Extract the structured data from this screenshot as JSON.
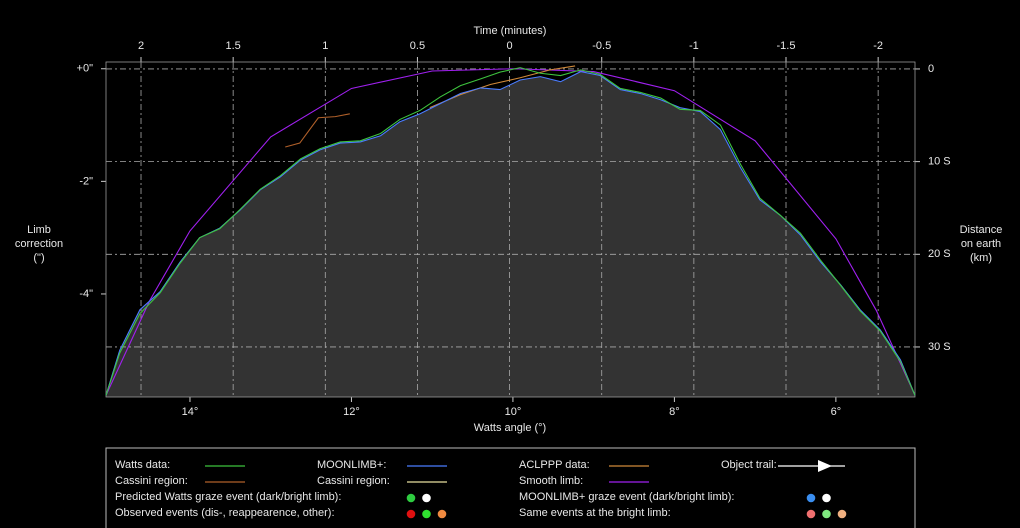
{
  "chart_data": {
    "type": "line",
    "x_label": "Watts angle (°)",
    "x2_label": "Time (minutes)",
    "y_label": [
      "Limb",
      "correction",
      "(\")"
    ],
    "y2_label": [
      "Distance",
      "on earth",
      "(km)"
    ],
    "xlim": [
      15.04,
      5.02
    ],
    "xticks": [
      {
        "value": 14,
        "label": "14°"
      },
      {
        "value": 12,
        "label": "12°"
      },
      {
        "value": 10,
        "label": "10°"
      },
      {
        "value": 8,
        "label": "8°"
      },
      {
        "value": 6,
        "label": "6°"
      }
    ],
    "x2lim": [
      2.19,
      -2.2
    ],
    "x2ticks": [
      2,
      1.5,
      1,
      0.5,
      0,
      -0.5,
      -1,
      -1.5,
      -2
    ],
    "ylim": [
      -5.83,
      0.12
    ],
    "yticks": [
      {
        "value": 0,
        "label": "+0\""
      },
      {
        "value": -2,
        "label": "-2\""
      },
      {
        "value": -4,
        "label": "-4\""
      }
    ],
    "y2lim": [
      35.4,
      -0.75
    ],
    "y2ticks": [
      0,
      {
        "value": 10,
        "label": "10 S"
      },
      {
        "value": 20,
        "label": "20 S"
      },
      {
        "value": 30,
        "label": "30 S"
      }
    ],
    "grid": true,
    "fill": "#333333",
    "series": [
      {
        "name": "Watts data:",
        "color": "#3ec43e",
        "x": [
          15.04,
          14.87,
          14.62,
          14.37,
          14.12,
          13.88,
          13.63,
          13.38,
          13.13,
          12.88,
          12.63,
          12.39,
          12.14,
          11.89,
          11.64,
          11.4,
          11.15,
          10.9,
          10.65,
          10.4,
          10.16,
          9.91,
          9.66,
          9.41,
          9.16,
          8.92,
          8.67,
          8.42,
          8.17,
          7.93,
          7.68,
          7.43,
          7.18,
          6.94,
          6.69,
          6.44,
          6.19,
          5.94,
          5.7,
          5.45,
          5.2,
          5.02
        ],
        "values": [
          -5.8,
          -5.05,
          -4.35,
          -3.98,
          -3.45,
          -3.0,
          -2.84,
          -2.5,
          -2.14,
          -1.9,
          -1.6,
          -1.42,
          -1.3,
          -1.28,
          -1.15,
          -0.9,
          -0.74,
          -0.5,
          -0.3,
          -0.18,
          -0.06,
          0.02,
          -0.08,
          -0.12,
          -0.02,
          -0.1,
          -0.35,
          -0.42,
          -0.52,
          -0.72,
          -0.74,
          -1.0,
          -1.7,
          -2.3,
          -2.6,
          -2.92,
          -3.4,
          -3.85,
          -4.3,
          -4.66,
          -5.2,
          -5.8
        ]
      },
      {
        "name": "MOONLIMB+:",
        "color": "#4a7cff",
        "x": [
          15.04,
          14.87,
          14.62,
          14.37,
          14.12,
          13.88,
          13.63,
          13.38,
          13.13,
          12.88,
          12.63,
          12.39,
          12.14,
          11.89,
          11.64,
          11.4,
          11.15,
          10.9,
          10.65,
          10.4,
          10.16,
          9.91,
          9.66,
          9.41,
          9.16,
          8.92,
          8.67,
          8.42,
          8.17,
          7.93,
          7.68,
          7.43,
          7.18,
          6.94,
          6.69,
          6.44,
          6.19,
          5.94,
          5.7,
          5.45,
          5.2,
          5.02
        ],
        "values": [
          -5.8,
          -5.0,
          -4.28,
          -3.96,
          -3.43,
          -3.0,
          -2.83,
          -2.51,
          -2.15,
          -1.92,
          -1.62,
          -1.44,
          -1.32,
          -1.3,
          -1.19,
          -0.94,
          -0.8,
          -0.62,
          -0.44,
          -0.34,
          -0.37,
          -0.2,
          -0.14,
          -0.23,
          -0.05,
          -0.12,
          -0.37,
          -0.44,
          -0.55,
          -0.69,
          -0.76,
          -1.08,
          -1.76,
          -2.33,
          -2.6,
          -2.95,
          -3.43,
          -3.84,
          -4.28,
          -4.64,
          -5.17,
          -5.8
        ]
      },
      {
        "name": "ACLPPP data:",
        "color": "#d08a3a",
        "x": [
          11.03,
          10.65,
          10.28,
          9.91,
          9.54,
          9.23
        ],
        "values": [
          -0.69,
          -0.46,
          -0.28,
          -0.16,
          -0.02,
          0.05
        ]
      },
      {
        "name": "Cassini region:",
        "color": "#b0602a",
        "x": [
          12.82,
          12.64,
          12.41,
          12.2,
          12.02
        ],
        "values": [
          -1.39,
          -1.32,
          -0.87,
          -0.85,
          -0.8
        ]
      },
      {
        "name": "Smooth limb:",
        "color": "#a020f0",
        "x": [
          15.04,
          14.5,
          14,
          13,
          12,
          11,
          10,
          9,
          8,
          7,
          6,
          5.5,
          5.02
        ],
        "values": [
          -5.8,
          -4.12,
          -2.88,
          -1.21,
          -0.35,
          -0.04,
          0,
          -0.05,
          -0.39,
          -1.28,
          -3.02,
          -4.29,
          -5.8
        ]
      }
    ],
    "legend_extra": {
      "object_trail": "Object trail:",
      "cassini_region_2": {
        "name": "Cassini region:",
        "color": "#e8e0a0"
      },
      "predicted_graze": {
        "name": "Predicted Watts graze event (dark/bright limb):",
        "colors": [
          "#2ecc40",
          "#ffffff"
        ]
      },
      "moonlimb_graze": {
        "name": "MOONLIMB+ graze event (dark/bright limb):",
        "colors": [
          "#3a8ef0",
          "#ffffff"
        ]
      },
      "observed": {
        "name": "Observed events (dis-, reappearence, other):",
        "colors": [
          "#e01010",
          "#30e030",
          "#f08a40"
        ]
      },
      "bright_limb": {
        "name": "Same events at the bright limb:",
        "colors": [
          "#f07070",
          "#80e880",
          "#f0b080"
        ]
      }
    }
  }
}
